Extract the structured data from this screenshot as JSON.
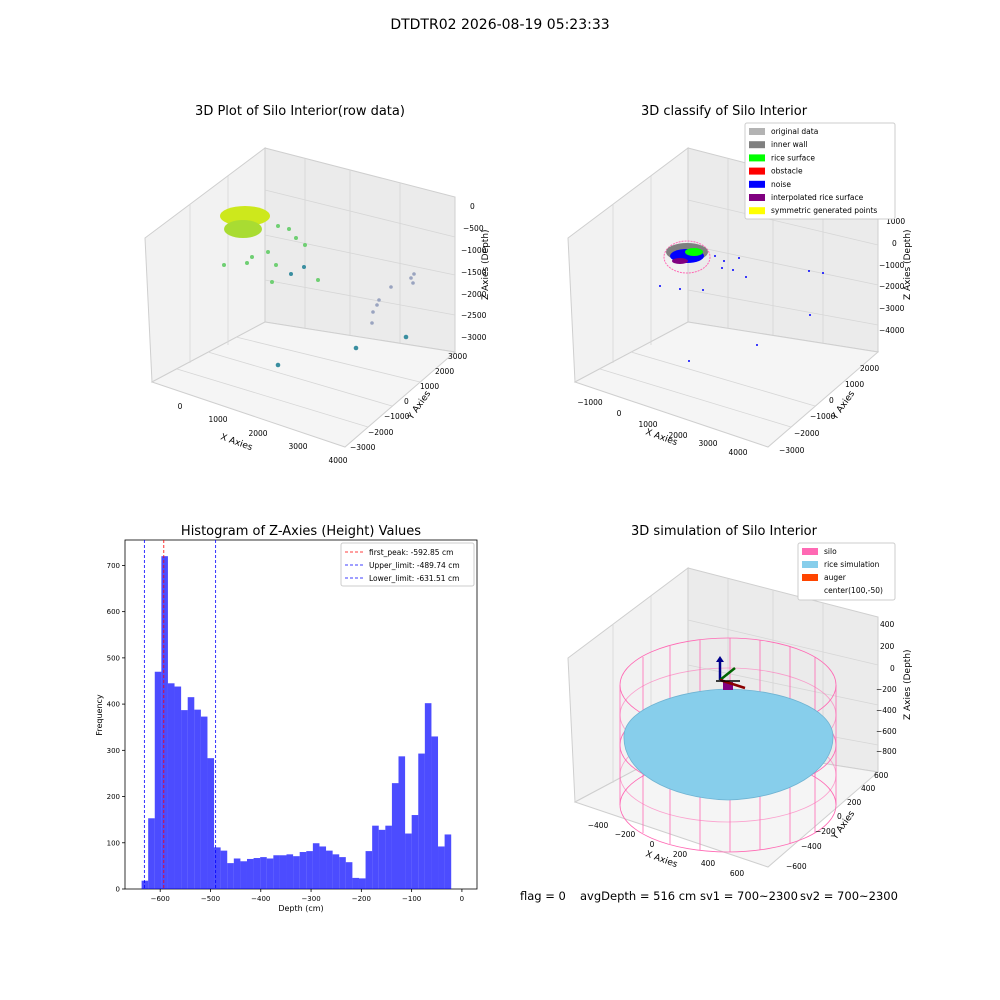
{
  "suptitle": "DTDTR02 2026-08-19 05:23:33",
  "panels": {
    "raw": {
      "title": "3D Plot of Silo Interior(row data)",
      "xlabel": "X Axies",
      "ylabel": "Y Axies",
      "zlabel": "Z Axies (Depth)",
      "x_ticks": [
        "0",
        "1000",
        "2000",
        "3000",
        "4000"
      ],
      "y_ticks": [
        "3000",
        "2000",
        "1000",
        "0",
        "−1000",
        "−2000",
        "−3000"
      ],
      "z_ticks": [
        "0",
        "−500",
        "−1000",
        "−1500",
        "−2000",
        "−2500",
        "−3000"
      ]
    },
    "classify": {
      "title": "3D classify of Silo Interior",
      "xlabel": "X Axies",
      "ylabel": "Y Axies",
      "zlabel": "Z Axies (Depth)",
      "x_ticks": [
        "−1000",
        "0",
        "1000",
        "2000",
        "3000",
        "4000"
      ],
      "y_ticks": [
        "2000",
        "1000",
        "0",
        "−1000",
        "−2000",
        "−3000"
      ],
      "z_ticks": [
        "1000",
        "0",
        "−1000",
        "−2000",
        "−3000",
        "−4000"
      ],
      "legend": [
        {
          "label": "original data",
          "color": "#b3b3b3"
        },
        {
          "label": "inner wall",
          "color": "#808080"
        },
        {
          "label": "rice surface",
          "color": "#00ff00"
        },
        {
          "label": "obstacle",
          "color": "#ff0000"
        },
        {
          "label": "noise",
          "color": "#0000ff"
        },
        {
          "label": "interpolated rice surface",
          "color": "#800080"
        },
        {
          "label": "symmetric generated points",
          "color": "#ffff00"
        }
      ]
    },
    "simulation": {
      "title": "3D simulation of Silo Interior",
      "xlabel": "X Axies",
      "ylabel": "Y Axies",
      "zlabel": "Z Axies (Depth)",
      "x_ticks": [
        "−400",
        "−200",
        "0",
        "200",
        "400",
        "600"
      ],
      "y_ticks": [
        "600",
        "400",
        "200",
        "0",
        "−200",
        "−400",
        "−600"
      ],
      "z_ticks": [
        "400",
        "200",
        "0",
        "−200",
        "−400",
        "−600",
        "−800"
      ],
      "legend": [
        {
          "label": "silo",
          "color": "#ff69b4"
        },
        {
          "label": "rice simulation",
          "color": "#87ceeb"
        },
        {
          "label": "auger",
          "color": "#ff4500"
        },
        {
          "label": "center(100,-50)",
          "color": ""
        }
      ]
    }
  },
  "footer": {
    "flag": "flag = 0",
    "avg": "avgDepth = 516 cm",
    "sv1": "sv1 = 700~2300",
    "sv2": "sv2 = 700~2300"
  },
  "chart_data": {
    "type": "bar",
    "title": "Histogram of Z-Axies (Height) Values",
    "xlabel": "Depth (cm)",
    "ylabel": "Frequency",
    "xlim": [
      -670,
      30
    ],
    "ylim": [
      0,
      755
    ],
    "x_ticks": [
      -600,
      -500,
      -400,
      -300,
      -200,
      -100,
      0
    ],
    "y_ticks": [
      0,
      100,
      200,
      300,
      400,
      500,
      600,
      700
    ],
    "bin_start": -637,
    "bin_width": 13.1,
    "values": [
      18,
      153,
      470,
      720,
      445,
      438,
      387,
      415,
      388,
      373,
      283,
      90,
      83,
      56,
      66,
      60,
      65,
      67,
      69,
      66,
      73,
      73,
      75,
      71,
      80,
      82,
      99,
      92,
      83,
      75,
      69,
      58,
      24,
      23,
      82,
      137,
      128,
      137,
      229,
      287,
      120,
      160,
      293,
      402,
      330,
      92,
      118
    ],
    "series_color": "#0000ff",
    "vlines": [
      {
        "label": "first_peak: -592.85 cm",
        "x": -592.85,
        "color": "#ff0000"
      },
      {
        "label": "Upper_limit: -489.74 cm",
        "x": -489.74,
        "color": "#0000ff"
      },
      {
        "label": "Lower_limit: -631.51 cm",
        "x": -631.51,
        "color": "#0000ff"
      }
    ]
  }
}
